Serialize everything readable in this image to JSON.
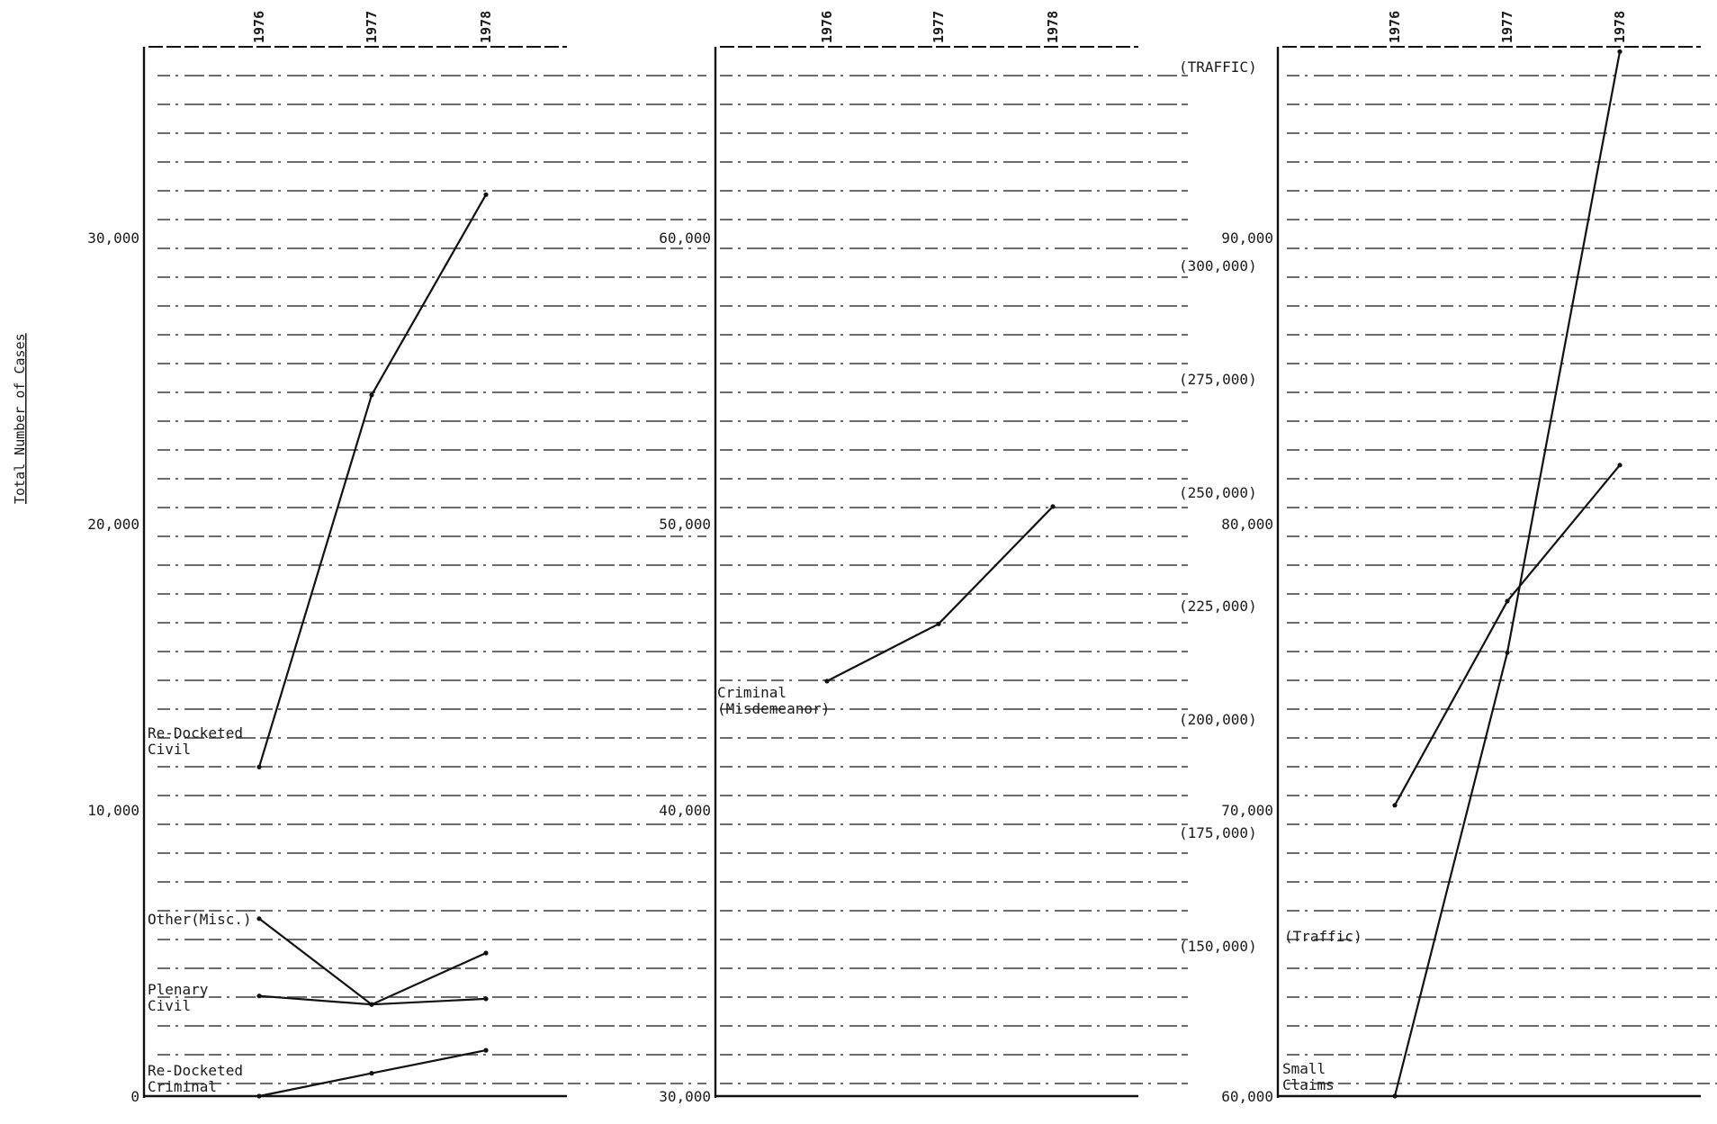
{
  "chart_data": [
    {
      "type": "line",
      "title": "",
      "xlabel": "",
      "ylabel": "Total Number of Cases",
      "x": [
        "1976",
        "1977",
        "1978"
      ],
      "ylim": [
        0,
        35000
      ],
      "yticks": [
        0,
        10000,
        20000,
        30000
      ],
      "ytick_labels": [
        "0",
        "10,000",
        "20,000",
        "30,000"
      ],
      "grid": true,
      "series": [
        {
          "name": "Re-Docketed Civil",
          "label_lines": [
            "Re-Docketed",
            "Civil"
          ],
          "values": [
            11500,
            24500,
            31500
          ]
        },
        {
          "name": "Other(Misc.)",
          "label_lines": [
            "Other(Misc.)"
          ],
          "values": [
            6200,
            3200,
            5000
          ]
        },
        {
          "name": "Plenary Civil",
          "label_lines": [
            "Plenary",
            "Civil"
          ],
          "values": [
            3500,
            3200,
            3400
          ]
        },
        {
          "name": "Re-Docketed Criminal",
          "label_lines": [
            "Re-Docketed",
            "Criminal"
          ],
          "values": [
            0,
            800,
            1600
          ]
        }
      ]
    },
    {
      "type": "line",
      "title": "",
      "xlabel": "",
      "ylabel": "",
      "x": [
        "1976",
        "1977",
        "1978"
      ],
      "ylim": [
        30000,
        65000
      ],
      "yticks": [
        30000,
        40000,
        50000,
        60000
      ],
      "ytick_labels": [
        "30,000",
        "40,000",
        "50,000",
        "60,000"
      ],
      "grid": true,
      "series": [
        {
          "name": "Criminal (Misdemeanor)",
          "label_lines": [
            "Criminal",
            "(Misdemeanor)"
          ],
          "values": [
            44500,
            46500,
            50600
          ]
        }
      ]
    },
    {
      "type": "line",
      "title": "",
      "xlabel": "",
      "ylabel": "",
      "x": [
        "1976",
        "1977",
        "1978"
      ],
      "ylim": [
        60000,
        95000
      ],
      "yticks": [
        60000,
        70000,
        80000,
        90000
      ],
      "ytick_labels": [
        "60,000",
        "70,000",
        "80,000",
        "90,000"
      ],
      "secondary_axis_title": "(TRAFFIC)",
      "secondary_yticks": [
        150000,
        175000,
        200000,
        225000,
        250000,
        275000,
        300000
      ],
      "secondary_ytick_labels": [
        "(150,000)",
        "(175,000)",
        "(200,000)",
        "(225,000)",
        "(250,000)",
        "(275,000)",
        "(300,000)"
      ],
      "grid": true,
      "series": [
        {
          "name": "Small Claims",
          "label_lines": [
            "Small",
            "Claims"
          ],
          "axis": "primary",
          "values": [
            60000,
            75500,
            96500
          ]
        },
        {
          "name": "(Traffic)",
          "label_lines": [
            "(Traffic)"
          ],
          "axis": "secondary",
          "values": [
            181000,
            226000,
            256000
          ]
        }
      ]
    }
  ]
}
